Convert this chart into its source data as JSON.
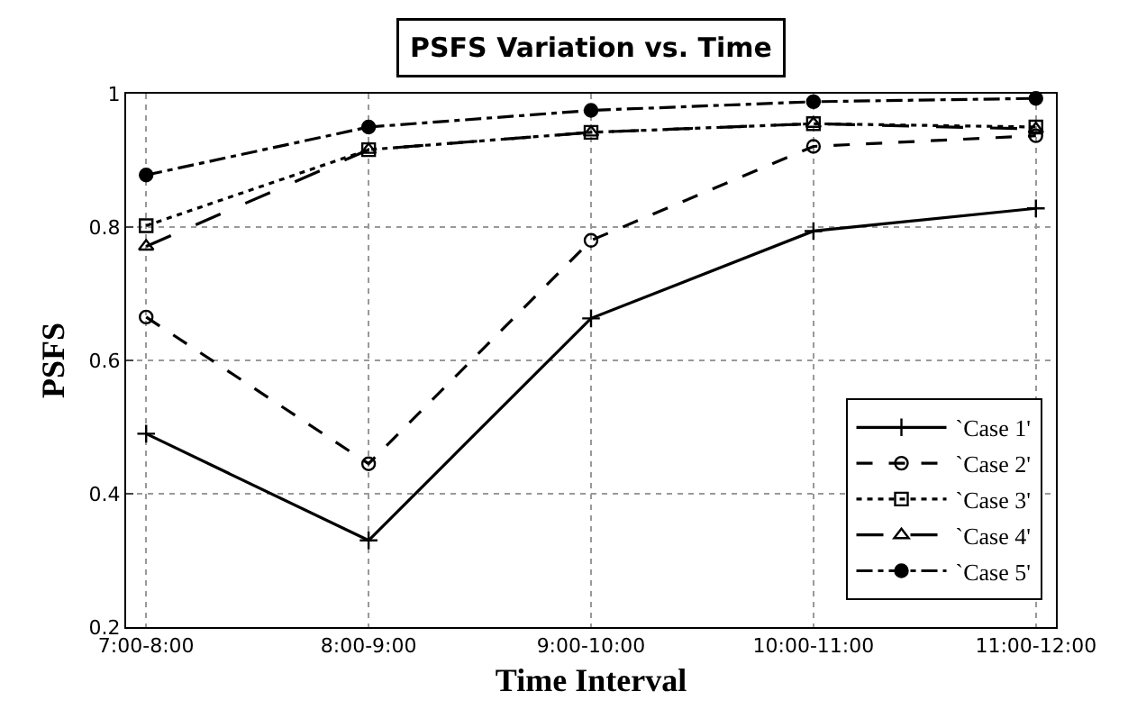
{
  "chart_data": {
    "type": "line",
    "title": "PSFS Variation vs. Time",
    "xlabel": "Time Interval",
    "ylabel": "PSFS",
    "categories": [
      "7:00-8:00",
      "8:00-9:00",
      "9:00-10:00",
      "10:00-11:00",
      "11:00-12:00"
    ],
    "series": [
      {
        "name": "`Case 1'",
        "color": "#000000",
        "marker": "cross",
        "line_style": "solid",
        "values": [
          0.49,
          0.33,
          0.663,
          0.794,
          0.828
        ]
      },
      {
        "name": "`Case 2'",
        "color": "#000000",
        "marker": "circle-open",
        "line_style": "dashed",
        "values": [
          0.665,
          0.445,
          0.78,
          0.921,
          0.937
        ]
      },
      {
        "name": "`Case 3'",
        "color": "#000000",
        "marker": "square-open",
        "line_style": "dotted",
        "values": [
          0.802,
          0.916,
          0.942,
          0.955,
          0.95
        ]
      },
      {
        "name": "`Case 4'",
        "color": "#000000",
        "marker": "triangle-open",
        "line_style": "longdash",
        "values": [
          0.771,
          0.916,
          0.942,
          0.955,
          0.947
        ]
      },
      {
        "name": "`Case 5'",
        "color": "#000000",
        "marker": "circle",
        "line_style": "dashdot",
        "values": [
          0.878,
          0.95,
          0.975,
          0.988,
          0.993
        ]
      }
    ],
    "ylim": [
      0.2,
      1.0
    ],
    "yticks": [
      0.2,
      0.4,
      0.6,
      0.8,
      1
    ],
    "grid": true,
    "legend": "right"
  }
}
